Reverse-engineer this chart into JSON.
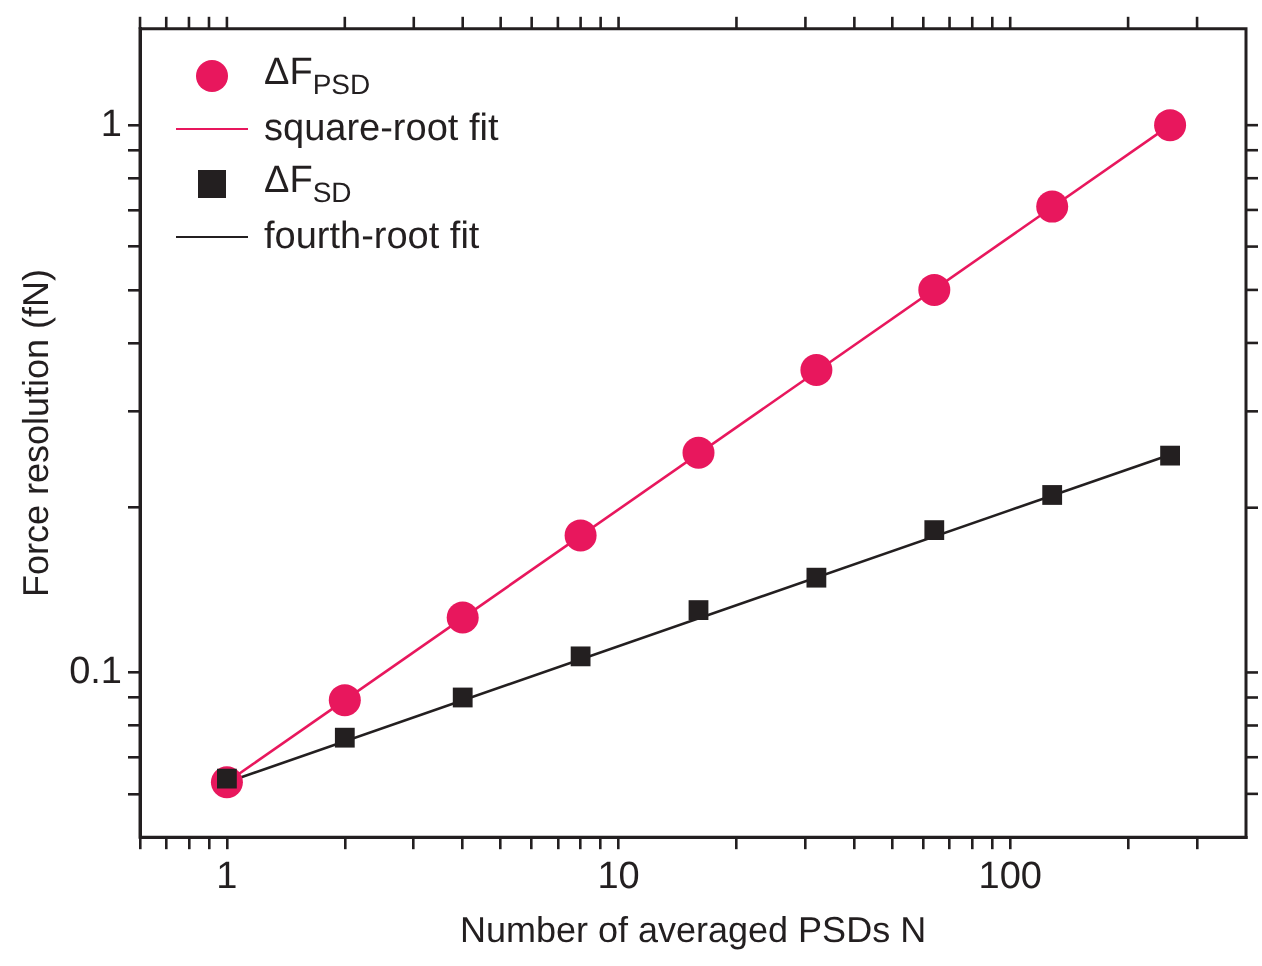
{
  "chart_data": {
    "type": "scatter",
    "xlabel": "Number of averaged PSDs N",
    "ylabel": "Force resolution (fN)",
    "log": "xy",
    "grid": false,
    "legend": "top left",
    "xlim": [
      0.6,
      400
    ],
    "ylim": [
      0.05,
      1.5
    ],
    "xticks": [
      {
        "value": 0.6,
        "label": null
      },
      {
        "value": 0.7,
        "label": null
      },
      {
        "value": 0.8,
        "label": null
      },
      {
        "value": 0.9,
        "label": null
      },
      1,
      {
        "value": 2,
        "label": null
      },
      {
        "value": 3,
        "label": null
      },
      {
        "value": 4,
        "label": null
      },
      {
        "value": 5,
        "label": null
      },
      {
        "value": 6,
        "label": null
      },
      {
        "value": 7,
        "label": null
      },
      {
        "value": 8,
        "label": null
      },
      {
        "value": 9,
        "label": null
      },
      10,
      {
        "value": 20,
        "label": null
      },
      {
        "value": 30,
        "label": null
      },
      {
        "value": 40,
        "label": null
      },
      {
        "value": 50,
        "label": null
      },
      {
        "value": 60,
        "label": null
      },
      {
        "value": 70,
        "label": null
      },
      {
        "value": 80,
        "label": null
      },
      {
        "value": 90,
        "label": null
      },
      100,
      {
        "value": 200,
        "label": null
      },
      {
        "value": 300,
        "label": null
      }
    ],
    "yticks": [
      {
        "value": 0.06,
        "label": null
      },
      {
        "value": 0.07,
        "label": null
      },
      {
        "value": 0.08,
        "label": null
      },
      {
        "value": 0.09,
        "label": null
      },
      0.1,
      {
        "value": 0.2,
        "label": null
      },
      {
        "value": 0.3,
        "label": null
      },
      {
        "value": 0.4,
        "label": null
      },
      {
        "value": 0.5,
        "label": null
      },
      {
        "value": 0.6,
        "label": null
      },
      {
        "value": 0.7,
        "label": null
      },
      {
        "value": 0.8,
        "label": null
      },
      {
        "value": 0.9,
        "label": null
      },
      1
    ],
    "series": [
      {
        "name": "ΔF$_{PSD}$",
        "type": "scatter",
        "marker": "circle",
        "color": "#e8175d",
        "x": [
          1,
          2,
          4,
          8,
          16,
          32,
          64,
          128,
          256
        ],
        "values": [
          0.063,
          0.089,
          0.126,
          0.178,
          0.252,
          0.357,
          0.5,
          0.71,
          1.0
        ]
      },
      {
        "name": "square-root fit",
        "type": "line",
        "marker": "none",
        "line_style": "solid",
        "color": "#e8175d",
        "x": [
          1,
          256
        ],
        "values": [
          0.063,
          1.0
        ]
      },
      {
        "name": "ΔF$_{SD}$",
        "type": "scatter",
        "marker": "square",
        "color": "#231f20",
        "x": [
          1,
          2,
          4,
          8,
          16,
          32,
          64,
          128,
          256
        ],
        "values": [
          0.064,
          0.076,
          0.09,
          0.107,
          0.13,
          0.149,
          0.182,
          0.211,
          0.249
        ]
      },
      {
        "name": "fourth-root fit",
        "type": "line",
        "marker": "none",
        "line_style": "solid",
        "color": "#231f20",
        "x": [
          1,
          256
        ],
        "values": [
          0.063,
          0.25
        ]
      }
    ]
  }
}
